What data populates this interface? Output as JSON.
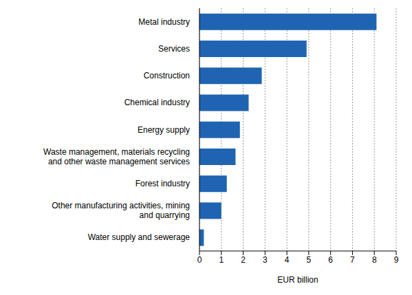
{
  "chart_data": {
    "type": "bar",
    "orientation": "horizontal",
    "categories": [
      "Metal industry",
      "Services",
      "Construction",
      "Chemical industry",
      "Energy supply",
      "Waste management, materials recycling and other waste management services",
      "Forest industry",
      "Other manufacturing activities, mining and quarrying",
      "Water supply and sewerage"
    ],
    "values": [
      8.1,
      4.9,
      2.85,
      2.25,
      1.85,
      1.65,
      1.25,
      1.0,
      0.2
    ],
    "color": "#1f63b3",
    "xlabel": "EUR billion",
    "xlim": [
      0,
      9
    ],
    "xticks": [
      0,
      1,
      2,
      3,
      4,
      5,
      6,
      7,
      8,
      9
    ],
    "grid": true
  }
}
